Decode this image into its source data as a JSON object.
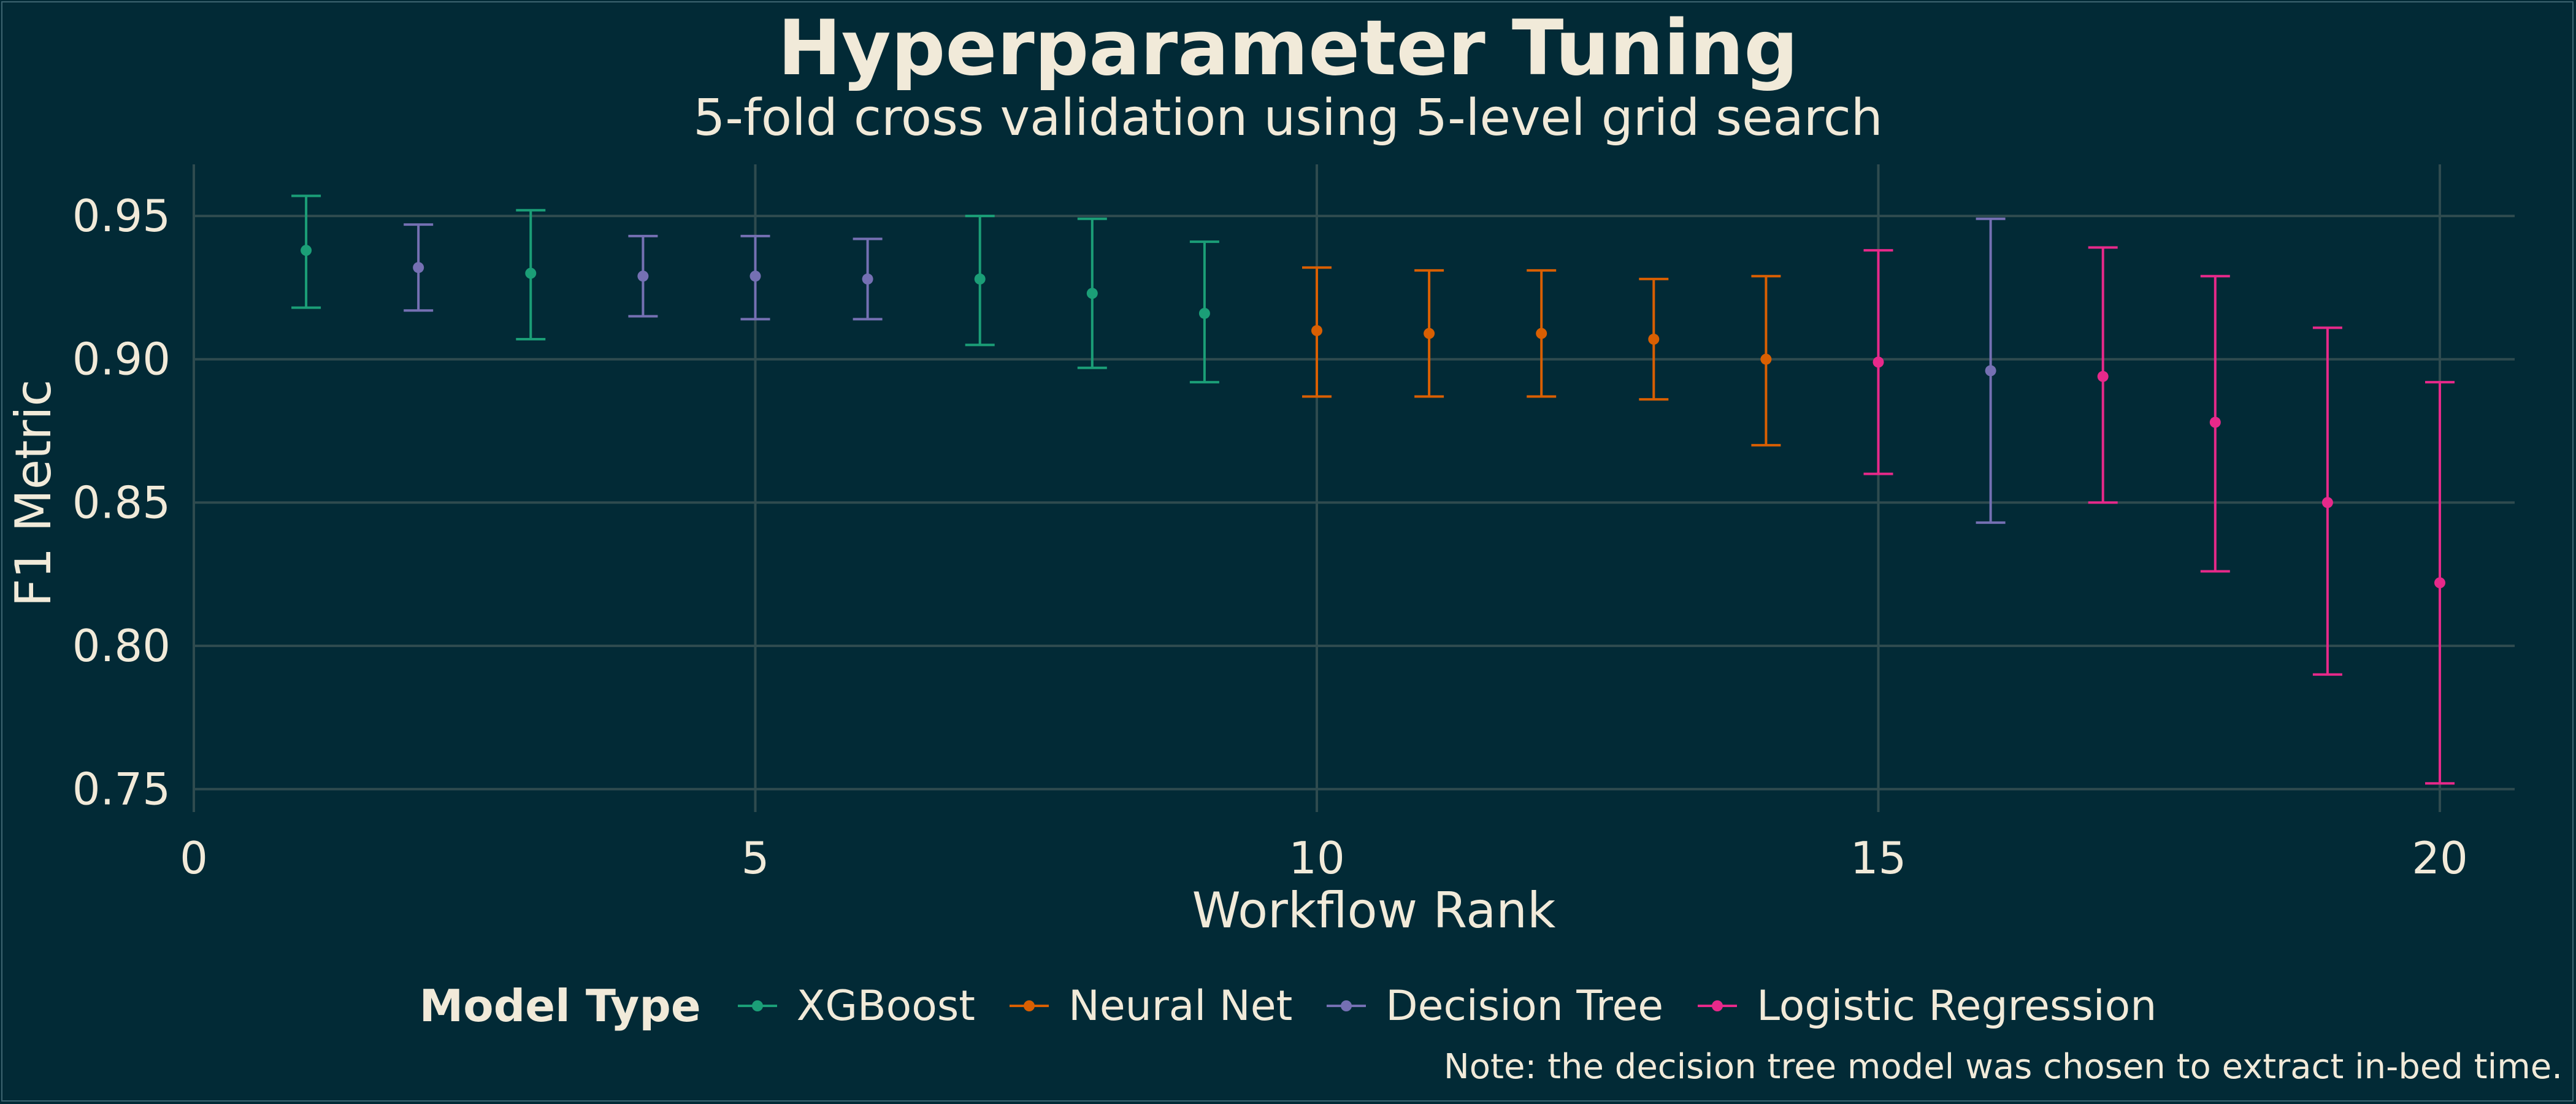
{
  "chart_data": {
    "type": "errorbar",
    "title": "Hyperparameter Tuning",
    "subtitle": "5-fold cross validation using 5-level grid search",
    "xlabel": "Workflow Rank",
    "ylabel": "F1 Metric",
    "xlim": [
      0,
      21
    ],
    "ylim": [
      0.742,
      0.968
    ],
    "x_ticks": [
      0,
      5,
      10,
      15,
      20
    ],
    "y_ticks": [
      0.75,
      0.8,
      0.85,
      0.9,
      0.95
    ],
    "x_tick_labels": [
      "0",
      "5",
      "10",
      "15",
      "20"
    ],
    "y_tick_labels": [
      "0.75",
      "0.80",
      "0.85",
      "0.90",
      "0.95"
    ],
    "grid": true,
    "legend_title": "Model Type",
    "legend_position": "bottom",
    "series": [
      {
        "name": "XGBoost",
        "color": "#1b9e77",
        "points": [
          {
            "x": 1,
            "y": 0.938,
            "ymin": 0.918,
            "ymax": 0.957
          },
          {
            "x": 3,
            "y": 0.93,
            "ymin": 0.907,
            "ymax": 0.952
          },
          {
            "x": 7,
            "y": 0.928,
            "ymin": 0.905,
            "ymax": 0.95
          },
          {
            "x": 8,
            "y": 0.923,
            "ymin": 0.897,
            "ymax": 0.949
          },
          {
            "x": 9,
            "y": 0.916,
            "ymin": 0.892,
            "ymax": 0.941
          }
        ]
      },
      {
        "name": "Neural Net",
        "color": "#d95f02",
        "points": [
          {
            "x": 10,
            "y": 0.91,
            "ymin": 0.887,
            "ymax": 0.932
          },
          {
            "x": 11,
            "y": 0.909,
            "ymin": 0.887,
            "ymax": 0.931
          },
          {
            "x": 12,
            "y": 0.909,
            "ymin": 0.887,
            "ymax": 0.931
          },
          {
            "x": 13,
            "y": 0.907,
            "ymin": 0.886,
            "ymax": 0.928
          },
          {
            "x": 14,
            "y": 0.9,
            "ymin": 0.87,
            "ymax": 0.929
          }
        ]
      },
      {
        "name": "Decision Tree",
        "color": "#7570b3",
        "points": [
          {
            "x": 2,
            "y": 0.932,
            "ymin": 0.917,
            "ymax": 0.947
          },
          {
            "x": 4,
            "y": 0.929,
            "ymin": 0.915,
            "ymax": 0.943
          },
          {
            "x": 5,
            "y": 0.929,
            "ymin": 0.914,
            "ymax": 0.943
          },
          {
            "x": 6,
            "y": 0.928,
            "ymin": 0.914,
            "ymax": 0.942
          },
          {
            "x": 16,
            "y": 0.896,
            "ymin": 0.843,
            "ymax": 0.949
          }
        ]
      },
      {
        "name": "Logistic Regression",
        "color": "#e7298a",
        "points": [
          {
            "x": 15,
            "y": 0.899,
            "ymin": 0.86,
            "ymax": 0.938
          },
          {
            "x": 17,
            "y": 0.894,
            "ymin": 0.85,
            "ymax": 0.939
          },
          {
            "x": 18,
            "y": 0.878,
            "ymin": 0.826,
            "ymax": 0.929
          },
          {
            "x": 19,
            "y": 0.85,
            "ymin": 0.79,
            "ymax": 0.911
          },
          {
            "x": 20,
            "y": 0.822,
            "ymin": 0.752,
            "ymax": 0.892
          }
        ]
      }
    ],
    "note": "Note: the decision tree model was chosen to extract in-bed time."
  }
}
